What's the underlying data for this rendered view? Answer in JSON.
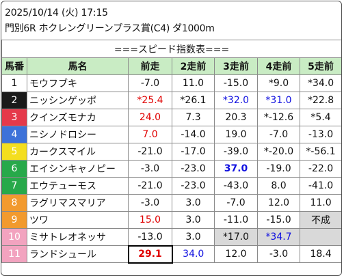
{
  "header": {
    "datetime": "2025/10/14 (火) 17:15",
    "race": "門別6R ホクレングリーンプラス賞(C4) ダ1000m"
  },
  "table": {
    "title": "===スピード指数表===",
    "columns": [
      "馬番",
      "馬名",
      "前走",
      "2走前",
      "3走前",
      "4走前",
      "5走前"
    ],
    "rows": [
      {
        "num": "1",
        "num_bg": "#ffffff",
        "num_fg": "#111111",
        "name": "モウフブキ",
        "cells": [
          {
            "v": "-7.0"
          },
          {
            "v": "11.0"
          },
          {
            "v": "-15.0"
          },
          {
            "v": "*9.0"
          },
          {
            "v": "*34.0"
          }
        ]
      },
      {
        "num": "2",
        "num_bg": "#1a1a1a",
        "num_fg": "#ffffff",
        "name": "ニッシンゲッポ",
        "cells": [
          {
            "v": "*25.4",
            "c": "red"
          },
          {
            "v": "*26.1"
          },
          {
            "v": "*32.0",
            "c": "blue"
          },
          {
            "v": "*31.0",
            "c": "blue"
          },
          {
            "v": "*22.8"
          }
        ]
      },
      {
        "num": "3",
        "num_bg": "#e5394a",
        "num_fg": "#ffffff",
        "name": "クインズモナカ",
        "cells": [
          {
            "v": "24.0",
            "c": "red"
          },
          {
            "v": "7.3"
          },
          {
            "v": "20.3"
          },
          {
            "v": "*-12.6"
          },
          {
            "v": "*5.4"
          }
        ]
      },
      {
        "num": "4",
        "num_bg": "#3d72d9",
        "num_fg": "#ffffff",
        "name": "ニシノドロシー",
        "cells": [
          {
            "v": "7.0",
            "c": "red"
          },
          {
            "v": "-14.0"
          },
          {
            "v": "19.0"
          },
          {
            "v": "-7.0"
          },
          {
            "v": "-13.0"
          }
        ]
      },
      {
        "num": "5",
        "num_bg": "#f4de1f",
        "num_fg": "#ffffff",
        "name": "カークスマイル",
        "cells": [
          {
            "v": "-21.0"
          },
          {
            "v": "-17.0"
          },
          {
            "v": "-39.0"
          },
          {
            "v": "*-20.0"
          },
          {
            "v": "*-56.1"
          }
        ]
      },
      {
        "num": "6",
        "num_bg": "#27a94a",
        "num_fg": "#ffffff",
        "name": "エイシンキャノピー",
        "cells": [
          {
            "v": "-3.0"
          },
          {
            "v": "-23.0"
          },
          {
            "v": "37.0",
            "c": "blue",
            "b": true
          },
          {
            "v": "-19.0"
          },
          {
            "v": "-22.0"
          }
        ]
      },
      {
        "num": "7",
        "num_bg": "#27a94a",
        "num_fg": "#ffffff",
        "name": "エウテューモス",
        "cells": [
          {
            "v": "-21.0"
          },
          {
            "v": "-23.0"
          },
          {
            "v": "-43.0"
          },
          {
            "v": "8.0"
          },
          {
            "v": "-41.0"
          }
        ]
      },
      {
        "num": "8",
        "num_bg": "#f29a2e",
        "num_fg": "#ffffff",
        "name": "ラグリマスマリア",
        "cells": [
          {
            "v": "-3.0"
          },
          {
            "v": "3.0"
          },
          {
            "v": "-7.0"
          },
          {
            "v": "12.0"
          },
          {
            "v": "11.0"
          }
        ]
      },
      {
        "num": "9",
        "num_bg": "#f29a2e",
        "num_fg": "#ffffff",
        "name": "ツワ",
        "cells": [
          {
            "v": "15.0",
            "c": "red"
          },
          {
            "v": "3.0"
          },
          {
            "v": "-11.0"
          },
          {
            "v": "-15.0"
          },
          {
            "v": "不成",
            "g": true
          }
        ]
      },
      {
        "num": "10",
        "num_bg": "#f2a3bf",
        "num_fg": "#ffffff",
        "name": "ミサトレオネッサ",
        "cells": [
          {
            "v": "-13.0"
          },
          {
            "v": "3.0"
          },
          {
            "v": "*17.0",
            "g": true
          },
          {
            "v": "*34.7",
            "c": "blue",
            "g": true
          },
          {
            "v": "",
            "g": true
          }
        ]
      },
      {
        "num": "11",
        "num_bg": "#f2a3bf",
        "num_fg": "#ffffff",
        "name": "ランドシュール",
        "cells": [
          {
            "v": "29.1",
            "c": "red",
            "b": true,
            "t": true
          },
          {
            "v": "34.0",
            "c": "blue"
          },
          {
            "v": "12.0"
          },
          {
            "v": "-3.0"
          },
          {
            "v": "18.4"
          }
        ]
      }
    ]
  }
}
